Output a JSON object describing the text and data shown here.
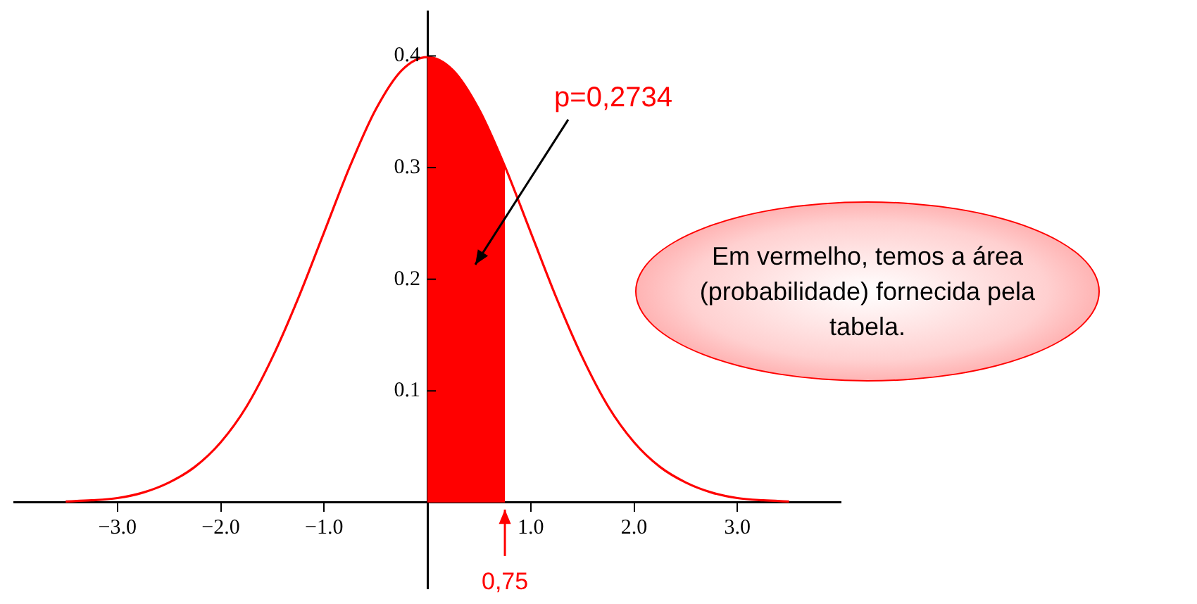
{
  "chart_data": {
    "type": "line",
    "series": [
      {
        "color": "#ff0000",
        "x": [
          -3.5,
          -3.25,
          -3,
          -2.75,
          -2.5,
          -2.25,
          -2,
          -1.75,
          -1.5,
          -1.25,
          -1,
          -0.75,
          -0.5,
          -0.25,
          0,
          0.25,
          0.5,
          0.75,
          1,
          1.25,
          1.5,
          1.75,
          2,
          2.25,
          2.5,
          2.75,
          3,
          3.25,
          3.5
        ],
        "values": [
          0.001,
          0.002,
          0.004,
          0.009,
          0.018,
          0.032,
          0.054,
          0.086,
          0.13,
          0.183,
          0.242,
          0.301,
          0.352,
          0.387,
          0.399,
          0.387,
          0.352,
          0.301,
          0.242,
          0.183,
          0.13,
          0.086,
          0.054,
          0.032,
          0.018,
          0.009,
          0.004,
          0.002,
          0.001
        ]
      },
      {
        "type": "area",
        "color": "#ff0000",
        "x": [
          0,
          0.125,
          0.25,
          0.375,
          0.5,
          0.625,
          0.75
        ],
        "values": [
          0.399,
          0.396,
          0.387,
          0.372,
          0.352,
          0.328,
          0.301
        ]
      }
    ],
    "xlim": [
      -4,
      4
    ],
    "xticks": [
      {
        "value": -3,
        "label": "−3.0"
      },
      {
        "value": -2,
        "label": "−2.0"
      },
      {
        "value": -1,
        "label": "−1.0"
      },
      {
        "value": 1,
        "label": "1.0"
      },
      {
        "value": 2,
        "label": "2.0"
      },
      {
        "value": 3,
        "label": "3.0"
      }
    ],
    "ylim": [
      -0.077,
      0.44
    ],
    "yticks": [
      0.1,
      0.2,
      0.3,
      0.4
    ],
    "annotations": [
      "p=0,2734",
      {
        "text": "0,75",
        "x": 0.75,
        "y": 0
      },
      "Em vermelho, temos a área (probabilidade) fornecida pela tabela."
    ]
  }
}
